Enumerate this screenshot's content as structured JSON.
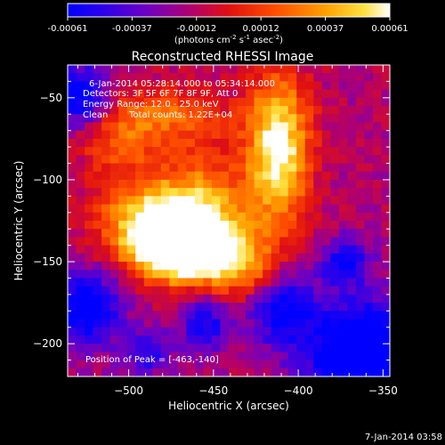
{
  "colorbar": {
    "tick_labels": [
      "-0.00061",
      "-0.00037",
      "-0.00012",
      "0.00012",
      "0.00037",
      "0.00061"
    ],
    "units_prefix": "(photons cm",
    "units_exp1": "-2",
    "units_mid": " s",
    "units_exp2": "-1",
    "units_mid2": " asec",
    "units_exp3": "-2",
    "units_suffix": ")"
  },
  "title": "Reconstructed RHESSI Image",
  "annotations": {
    "time_range": "6-Jan-2014 05:28:14.000 to 05:34:14.000",
    "detectors": "Detectors: 3F 5F 6F 7F 8F 9F, Att 0",
    "energy_range": "Energy Range: 12.0 - 25.0 keV",
    "clean": "Clean",
    "total_counts": "Total counts: 1.22E+04",
    "peak": "Position of Peak = [-463,-140]"
  },
  "footer_timestamp": "7-Jan-2014 03:58",
  "chart_data": {
    "type": "heatmap",
    "title": "Reconstructed RHESSI Image",
    "xlabel": "Heliocentric X (arcsec)",
    "ylabel": "Heliocentric Y (arcsec)",
    "xlim": [
      -536,
      -346
    ],
    "ylim": [
      -220,
      -30
    ],
    "x_ticks": [
      -500,
      -450,
      -400,
      -350
    ],
    "y_ticks": [
      -50,
      -100,
      -150,
      -200
    ],
    "x_tick_labels": [
      "−500",
      "−450",
      "−400",
      "−350"
    ],
    "y_tick_labels": [
      "−50",
      "−100",
      "−150",
      "−200"
    ],
    "colorbar_range": [
      -0.00061,
      0.00061
    ],
    "colormap": "RHESSI (blue-purple-red-orange-yellow-white)",
    "peak": {
      "x": -463,
      "y": -140
    },
    "features": [
      {
        "kind": "peak",
        "x": -466,
        "y": -142,
        "sx": 20,
        "sy": 13,
        "amp": 0.95
      },
      {
        "kind": "source",
        "x": -485,
        "y": -125,
        "sx": 22,
        "sy": 18,
        "amp": 0.55
      },
      {
        "kind": "source",
        "x": -455,
        "y": -118,
        "sx": 18,
        "sy": 25,
        "amp": 0.35
      },
      {
        "kind": "source",
        "x": -412,
        "y": -82,
        "sx": 13,
        "sy": 32,
        "amp": 0.65
      },
      {
        "kind": "source",
        "x": -505,
        "y": -72,
        "sx": 18,
        "sy": 16,
        "amp": 0.3
      },
      {
        "kind": "source",
        "x": -430,
        "y": -155,
        "sx": 14,
        "sy": 14,
        "amp": 0.3
      },
      {
        "kind": "source",
        "x": -470,
        "y": -60,
        "sx": 20,
        "sy": 12,
        "amp": 0.25
      },
      {
        "kind": "dip",
        "x": -528,
        "y": -50,
        "sx": 12,
        "sy": 14,
        "amp": -0.45
      },
      {
        "kind": "dip",
        "x": -525,
        "y": -178,
        "sx": 14,
        "sy": 16,
        "amp": -0.5
      },
      {
        "kind": "dip",
        "x": -362,
        "y": -205,
        "sx": 24,
        "sy": 22,
        "amp": -0.6
      },
      {
        "kind": "dip",
        "x": -410,
        "y": -178,
        "sx": 14,
        "sy": 16,
        "amp": -0.4
      },
      {
        "kind": "dip",
        "x": -372,
        "y": -150,
        "sx": 10,
        "sy": 10,
        "amp": -0.35
      },
      {
        "kind": "dip",
        "x": -490,
        "y": -205,
        "sx": 10,
        "sy": 10,
        "amp": -0.3
      },
      {
        "kind": "dip",
        "x": -455,
        "y": -188,
        "sx": 10,
        "sy": 12,
        "amp": -0.35
      }
    ],
    "baseline": 0.38
  }
}
